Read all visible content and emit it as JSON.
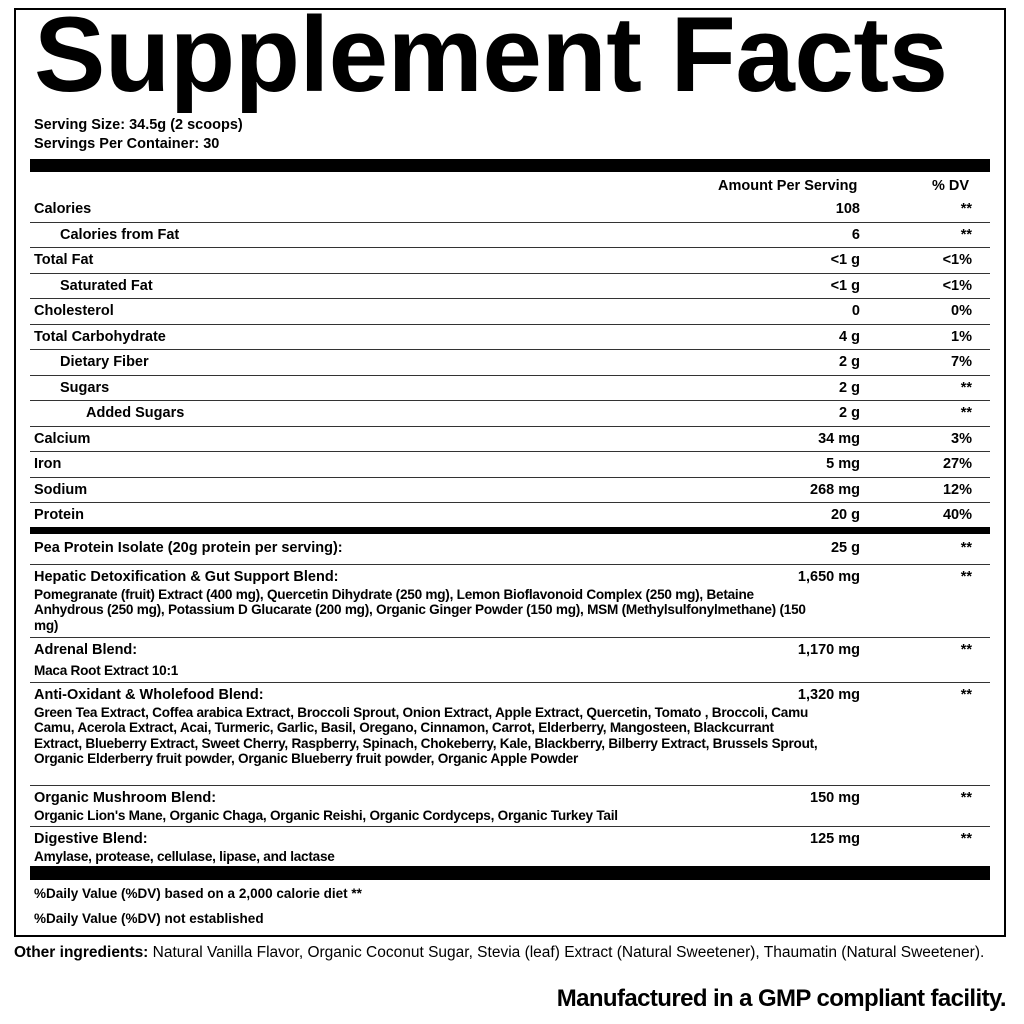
{
  "title": "Supplement Facts",
  "serving_size": "Serving Size: 34.5g (2 scoops)",
  "servings_per_container": "Servings Per Container: 30",
  "header": {
    "amount": "Amount Per Serving",
    "dv": "% DV"
  },
  "nutrients": [
    {
      "name": "Calories",
      "amount": "108",
      "dv": "**",
      "indent": 0
    },
    {
      "name": "Calories from Fat",
      "amount": "6",
      "dv": "**",
      "indent": 1
    },
    {
      "name": "Total Fat",
      "amount": "<1 g",
      "dv": "<1%",
      "indent": 0
    },
    {
      "name": "Saturated Fat",
      "amount": "<1 g",
      "dv": "<1%",
      "indent": 1
    },
    {
      "name": "Cholesterol",
      "amount": "0",
      "dv": "0%",
      "indent": 0
    },
    {
      "name": "Total Carbohydrate",
      "amount": "4 g",
      "dv": "1%",
      "indent": 0
    },
    {
      "name": "Dietary Fiber",
      "amount": "2 g",
      "dv": "7%",
      "indent": 1
    },
    {
      "name": "Sugars",
      "amount": "2 g",
      "dv": "**",
      "indent": 1
    },
    {
      "name": "Added Sugars",
      "amount": "2 g",
      "dv": "**",
      "indent": 2
    },
    {
      "name": "Calcium",
      "amount": "34 mg",
      "dv": "3%",
      "indent": 0
    },
    {
      "name": "Iron",
      "amount": "5 mg",
      "dv": "27%",
      "indent": 0
    },
    {
      "name": "Sodium",
      "amount": "268 mg",
      "dv": "12%",
      "indent": 0
    },
    {
      "name": "Protein",
      "amount": "20 g",
      "dv": "40%",
      "indent": 0
    }
  ],
  "blends": [
    {
      "name": "Pea Protein Isolate (20g protein per serving):",
      "amount": "25 g",
      "dv": "**",
      "ingredients": ""
    },
    {
      "name": "Hepatic Detoxification & Gut Support Blend:",
      "amount": "1,650 mg",
      "dv": "**",
      "ingredients": "Pomegranate (fruit) Extract (400 mg), Quercetin Dihydrate (250 mg), Lemon Bioflavonoid Complex (250 mg), Betaine Anhydrous (250 mg), Potassium D Glucarate (200 mg), Organic Ginger Powder (150 mg), MSM (Methylsulfonylmethane) (150 mg)"
    },
    {
      "name": "Adrenal Blend:",
      "amount": "1,170 mg",
      "dv": "**",
      "ingredients": "Maca Root Extract 10:1"
    },
    {
      "name": "Anti-Oxidant & Wholefood Blend:",
      "amount": "1,320 mg",
      "dv": "**",
      "ingredients": "Green Tea Extract, Coffea arabica Extract, Broccoli Sprout, Onion Extract, Apple Extract, Quercetin, Tomato , Broccoli, Camu Camu, Acerola Extract, Acai, Turmeric, Garlic, Basil, Oregano, Cinnamon, Carrot, Elderberry, Mangosteen, Blackcurrant Extract, Blueberry Extract, Sweet Cherry, Raspberry, Spinach, Chokeberry, Kale, Blackberry, Bilberry Extract, Brussels Sprout, Organic Elderberry fruit powder, Organic Blueberry fruit powder, Organic Apple Powder"
    },
    {
      "name": "Organic Mushroom Blend:",
      "amount": "150 mg",
      "dv": "**",
      "ingredients": "Organic Lion's Mane, Organic Chaga, Organic Reishi, Organic Cordyceps, Organic Turkey Tail"
    },
    {
      "name": "Digestive Blend:",
      "amount": "125 mg",
      "dv": "**",
      "ingredients": "Amylase, protease, cellulase, lipase, and lactase"
    }
  ],
  "footnotes": [
    "%Daily Value (%DV) based on a 2,000 calorie diet **",
    "%Daily Value (%DV) not established"
  ],
  "other_label": "Other ingredients:",
  "other_text": " Natural Vanilla Flavor, Organic Coconut Sugar, Stevia (leaf) Extract (Natural Sweetener), Thaumatin (Natural Sweetener).",
  "manufactured": "Manufactured in a GMP compliant facility."
}
